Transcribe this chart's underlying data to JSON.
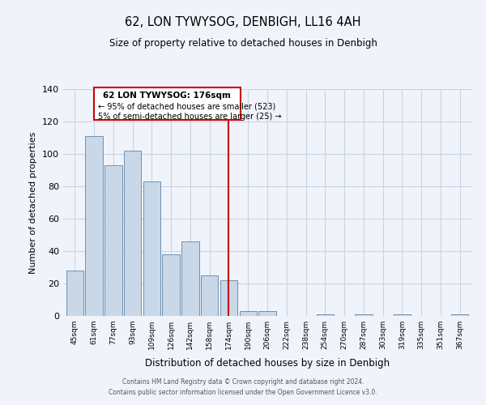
{
  "title": "62, LON TYWYSOG, DENBIGH, LL16 4AH",
  "subtitle": "Size of property relative to detached houses in Denbigh",
  "xlabel": "Distribution of detached houses by size in Denbigh",
  "ylabel": "Number of detached properties",
  "bar_labels": [
    "45sqm",
    "61sqm",
    "77sqm",
    "93sqm",
    "109sqm",
    "126sqm",
    "142sqm",
    "158sqm",
    "174sqm",
    "190sqm",
    "206sqm",
    "222sqm",
    "238sqm",
    "254sqm",
    "270sqm",
    "287sqm",
    "303sqm",
    "319sqm",
    "335sqm",
    "351sqm",
    "367sqm"
  ],
  "bar_values": [
    28,
    111,
    93,
    102,
    83,
    38,
    46,
    25,
    22,
    3,
    3,
    0,
    0,
    1,
    0,
    1,
    0,
    1,
    0,
    0,
    1
  ],
  "bar_color": "#c8d8e8",
  "bar_edge_color": "#7090b0",
  "vline_x": 8,
  "vline_color": "#cc0000",
  "annotation_title": "62 LON TYWYSOG: 176sqm",
  "annotation_line1": "← 95% of detached houses are smaller (523)",
  "annotation_line2": "5% of semi-detached houses are larger (25) →",
  "annotation_box_color": "#cc0000",
  "ylim": [
    0,
    140
  ],
  "yticks": [
    0,
    20,
    40,
    60,
    80,
    100,
    120,
    140
  ],
  "footer_line1": "Contains HM Land Registry data © Crown copyright and database right 2024.",
  "footer_line2": "Contains public sector information licensed under the Open Government Licence v3.0.",
  "bg_color": "#f0f4fa",
  "grid_color": "#c8d4e4"
}
